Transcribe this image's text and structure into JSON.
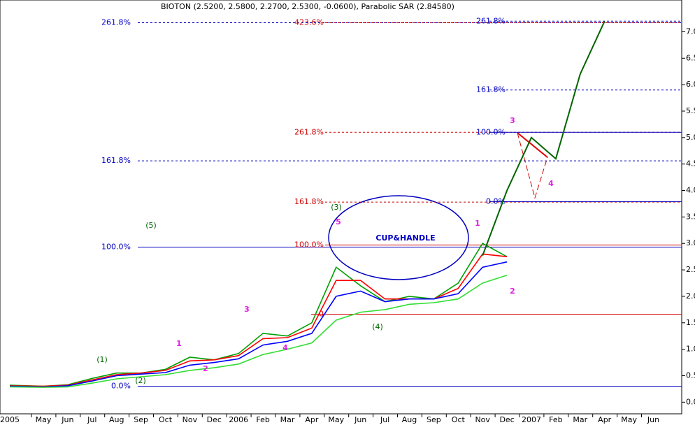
{
  "chart_data": {
    "type": "line",
    "title": "BIOTON (2.5200, 2.5800, 2.2700, 2.5300, -0.0600), Parabolic SAR (2.84580)",
    "categories": [
      "2005",
      "May",
      "Jun",
      "Jul",
      "Aug",
      "Sep",
      "Oct",
      "Nov",
      "Dec",
      "2006",
      "Feb",
      "Mar",
      "Apr",
      "May",
      "Jun",
      "Jul",
      "Aug",
      "Sep",
      "Oct",
      "Nov",
      "Dec",
      "2007",
      "Feb",
      "Mar",
      "Apr",
      "May",
      "Jun"
    ],
    "series": [
      {
        "color": "#00a000",
        "values": [
          0.32,
          0.3,
          0.33,
          0.45,
          0.55,
          0.55,
          0.62,
          0.85,
          0.8,
          0.92,
          1.3,
          1.25,
          1.5,
          2.55,
          2.2,
          1.9,
          2.0,
          1.95,
          2.25,
          3.0,
          2.75,
          null,
          null,
          null,
          null,
          null,
          null
        ]
      },
      {
        "color": "#ff0000",
        "values": [
          0.31,
          0.3,
          0.32,
          0.42,
          0.52,
          0.55,
          0.6,
          0.78,
          0.8,
          0.88,
          1.2,
          1.22,
          1.4,
          2.3,
          2.3,
          1.95,
          1.95,
          1.95,
          2.15,
          2.8,
          2.75,
          null,
          null,
          null,
          null,
          null,
          null
        ]
      },
      {
        "color": "#0000ff",
        "values": [
          0.3,
          0.29,
          0.31,
          0.4,
          0.5,
          0.53,
          0.56,
          0.7,
          0.75,
          0.82,
          1.08,
          1.15,
          1.3,
          2.0,
          2.1,
          1.9,
          1.95,
          1.95,
          2.05,
          2.55,
          2.65,
          null,
          null,
          null,
          null,
          null,
          null
        ]
      },
      {
        "color": "#33dd33",
        "values": [
          0.29,
          0.28,
          0.29,
          0.36,
          0.44,
          0.48,
          0.52,
          0.6,
          0.65,
          0.72,
          0.9,
          1.0,
          1.12,
          1.55,
          1.7,
          1.75,
          1.85,
          1.88,
          1.95,
          2.25,
          2.4,
          null,
          null,
          null,
          null,
          null,
          null
        ]
      },
      {
        "color": "#006400",
        "values": [
          null,
          null,
          null,
          null,
          null,
          null,
          null,
          null,
          null,
          null,
          null,
          null,
          null,
          null,
          null,
          null,
          null,
          null,
          null,
          2.77,
          4.0,
          5.0,
          4.6,
          6.2,
          7.2,
          null,
          null
        ]
      }
    ],
    "ylim": [
      -0.22,
      7.6
    ],
    "yticks": [
      {
        "value": 0,
        "label": "0.0"
      },
      {
        "value": 0.5,
        "label": "0.5"
      },
      {
        "value": 1,
        "label": "1.0"
      },
      {
        "value": 1.5,
        "label": "1.5"
      },
      {
        "value": 2,
        "label": "2.0"
      },
      {
        "value": 2.5,
        "label": "2.5"
      },
      {
        "value": 3,
        "label": "3.0"
      },
      {
        "value": 3.5,
        "label": "3.5"
      },
      {
        "value": 4,
        "label": "4.0"
      },
      {
        "value": 4.5,
        "label": "4.5"
      },
      {
        "value": 5,
        "label": "5.0"
      },
      {
        "value": 5.5,
        "label": "5.5"
      },
      {
        "value": 6,
        "label": "6.0"
      },
      {
        "value": 6.5,
        "label": "6.5"
      },
      {
        "value": 7,
        "label": "7.0"
      }
    ],
    "fib_groups": [
      {
        "color": "#0000c0",
        "levels": [
          {
            "label": "0.0%",
            "value": 0.3,
            "dashed": false
          },
          {
            "label": "100.0%",
            "value": 2.93,
            "dashed": false
          },
          {
            "label": "161.8%",
            "value": 4.56,
            "dashed": true
          },
          {
            "label": "261.8%",
            "value": 7.17,
            "dashed": true
          }
        ]
      },
      {
        "color": "#d00000",
        "levels": [
          {
            "label": "0",
            "value": 1.66,
            "dashed": false
          },
          {
            "label": "100.0%",
            "value": 2.97,
            "dashed": false
          },
          {
            "label": "161.8%",
            "value": 3.78,
            "dashed": true
          },
          {
            "label": "261.8%",
            "value": 5.1,
            "dashed": true
          },
          {
            "label": "423.6%",
            "value": 7.17,
            "dashed": true
          }
        ]
      },
      {
        "color": "#0000c0",
        "levels": [
          {
            "label": "0.0%",
            "value": 3.79,
            "dashed": false
          },
          {
            "label": "100.0%",
            "value": 5.1,
            "dashed": false
          },
          {
            "label": "161.8%",
            "value": 5.9,
            "dashed": true
          },
          {
            "label": "261.8%",
            "value": 7.2,
            "dashed": true
          }
        ]
      }
    ],
    "annotations": [
      {
        "text": "(1)",
        "color": "#006400"
      },
      {
        "text": "(2)",
        "color": "#006400"
      },
      {
        "text": "(3)",
        "color": "#006400"
      },
      {
        "text": "(4)",
        "color": "#006400"
      },
      {
        "text": "(5)",
        "color": "#006400"
      },
      {
        "text": "1",
        "color": "#e020e0"
      },
      {
        "text": "2",
        "color": "#e020e0"
      },
      {
        "text": "3",
        "color": "#e020e0"
      },
      {
        "text": "4",
        "color": "#e020e0"
      },
      {
        "text": "5",
        "color": "#e020e0"
      },
      {
        "text": "1",
        "color": "#e020e0"
      },
      {
        "text": "2",
        "color": "#e020e0"
      },
      {
        "text": "3",
        "color": "#e020e0"
      },
      {
        "text": "4",
        "color": "#e020e0"
      },
      {
        "text": "CUP&HANDLE",
        "color": "#0000c0"
      }
    ]
  }
}
